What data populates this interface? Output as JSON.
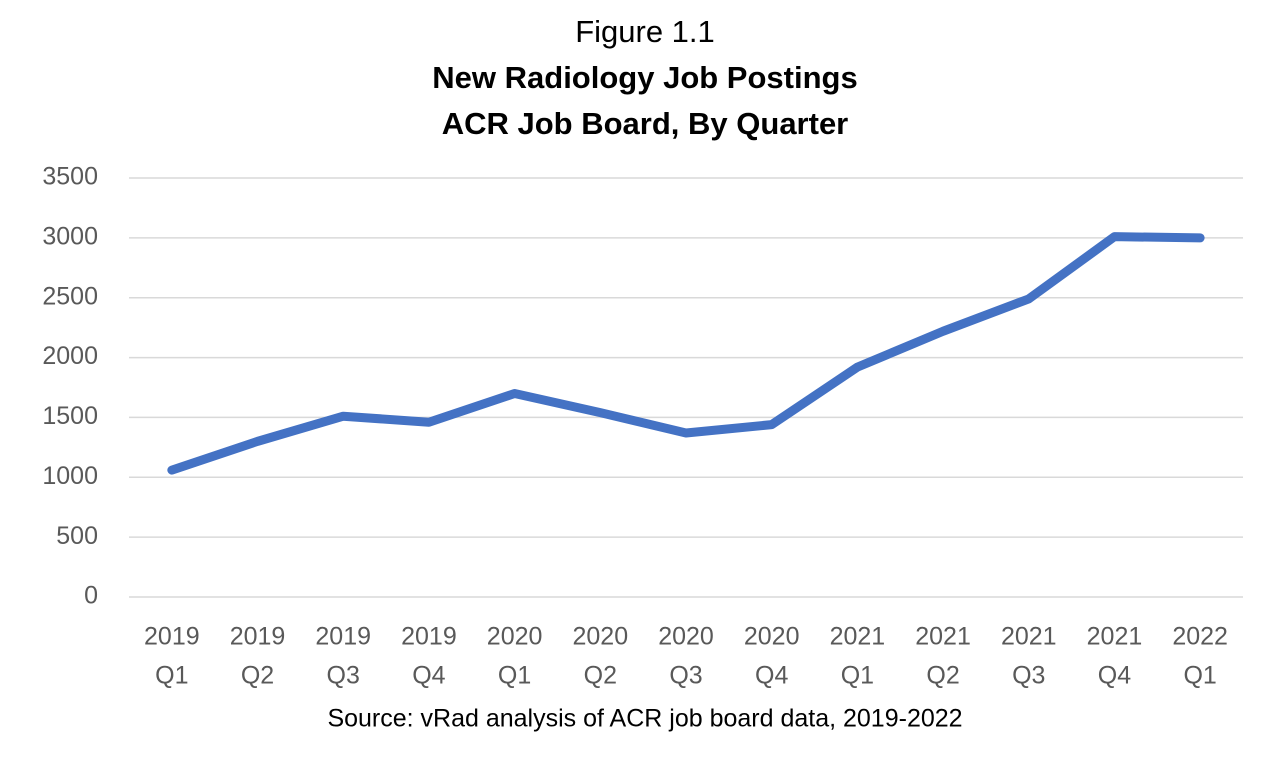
{
  "chart_data": {
    "type": "line",
    "title": "Figure 1.1",
    "subtitle": [
      "New Radiology Job Postings",
      "ACR Job Board, By Quarter"
    ],
    "source": "Source: vRad analysis of ACR job board data, 2019-2022",
    "categories": [
      [
        "2019",
        "Q1"
      ],
      [
        "2019",
        "Q2"
      ],
      [
        "2019",
        "Q3"
      ],
      [
        "2019",
        "Q4"
      ],
      [
        "2020",
        "Q1"
      ],
      [
        "2020",
        "Q2"
      ],
      [
        "2020",
        "Q3"
      ],
      [
        "2020",
        "Q4"
      ],
      [
        "2021",
        "Q1"
      ],
      [
        "2021",
        "Q2"
      ],
      [
        "2021",
        "Q3"
      ],
      [
        "2021",
        "Q4"
      ],
      [
        "2022",
        "Q1"
      ]
    ],
    "values": [
      1060,
      1300,
      1510,
      1460,
      1700,
      1540,
      1370,
      1440,
      1920,
      2220,
      2490,
      3010,
      3000
    ],
    "color": "#4472c4",
    "ylim": [
      0,
      3500
    ],
    "yticks": [
      0,
      500,
      1000,
      1500,
      2000,
      2500,
      3000,
      3500
    ],
    "grid": true
  }
}
